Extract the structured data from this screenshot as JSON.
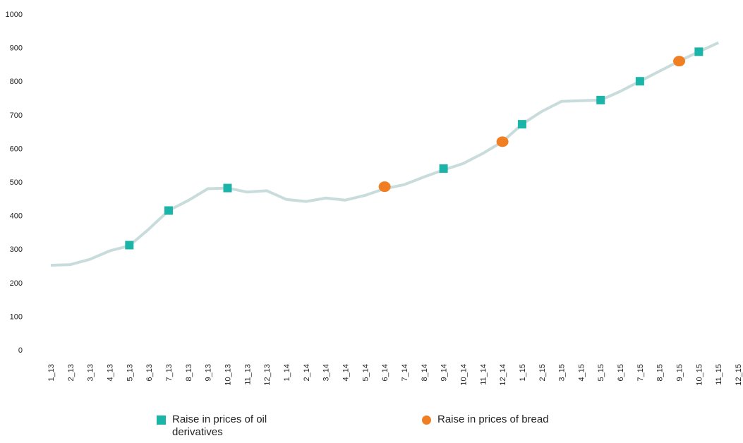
{
  "chart_data": {
    "type": "line",
    "categories": [
      "1_13",
      "2_13",
      "3_13",
      "4_13",
      "5_13",
      "6_13",
      "7_13",
      "8_13",
      "9_13",
      "10_13",
      "11_13",
      "12_13",
      "1_14",
      "2_14",
      "3_14",
      "4_14",
      "5_14",
      "6_14",
      "7_14",
      "8_14",
      "9_14",
      "10_14",
      "11_14",
      "12_14",
      "1_15",
      "2_15",
      "3_15",
      "4_15",
      "5_15",
      "6_15",
      "7_15",
      "8_15",
      "9_15",
      "10_15",
      "11_15",
      "12_15"
    ],
    "values": [
      252,
      254,
      270,
      295,
      310,
      360,
      415,
      445,
      480,
      482,
      470,
      474,
      448,
      442,
      452,
      446,
      460,
      480,
      492,
      515,
      536,
      555,
      585,
      620,
      672,
      710,
      740,
      742,
      744,
      770,
      800,
      830,
      860,
      888,
      915,
      null
    ],
    "color": "#c9dcdc",
    "ylim": [
      0,
      1000
    ],
    "yticks": [
      0,
      100,
      200,
      300,
      400,
      500,
      600,
      700,
      800,
      900,
      1000
    ],
    "grid": false,
    "markers": [
      {
        "name": "Raise in prices of oil derivatives",
        "color": "#1ab5a8",
        "shape": "square",
        "values": [
          null,
          null,
          null,
          null,
          312,
          null,
          415,
          null,
          null,
          482,
          null,
          null,
          null,
          null,
          null,
          null,
          null,
          null,
          null,
          null,
          540,
          null,
          null,
          null,
          672,
          null,
          null,
          null,
          744,
          null,
          800,
          null,
          null,
          888,
          null,
          null
        ]
      },
      {
        "name": "Raise in prices of bread",
        "color": "#f07f23",
        "shape": "circle",
        "values": [
          null,
          null,
          null,
          null,
          null,
          null,
          null,
          null,
          null,
          null,
          null,
          null,
          null,
          null,
          null,
          null,
          null,
          486,
          null,
          null,
          null,
          null,
          null,
          620,
          null,
          null,
          null,
          null,
          null,
          null,
          null,
          null,
          860,
          null,
          null,
          null
        ]
      }
    ]
  }
}
